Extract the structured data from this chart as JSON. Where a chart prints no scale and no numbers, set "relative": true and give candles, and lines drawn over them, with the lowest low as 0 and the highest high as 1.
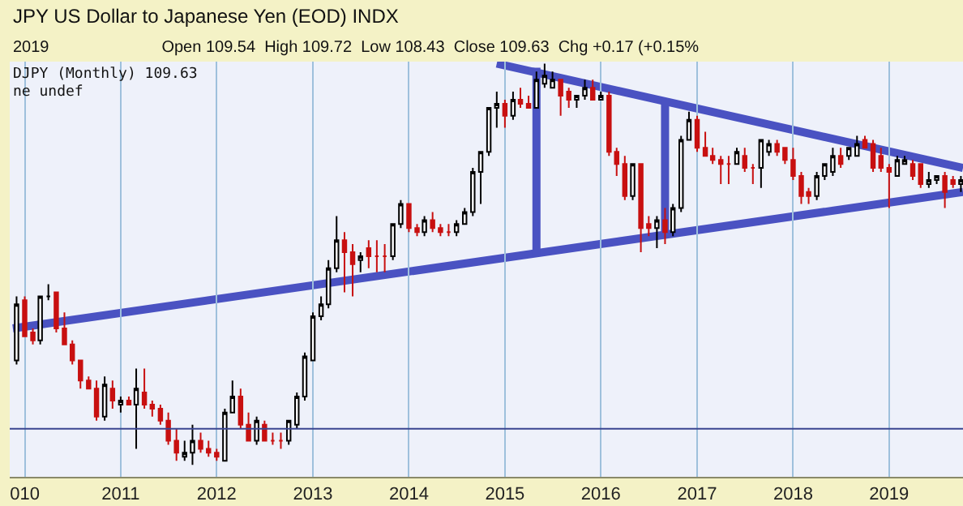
{
  "chart_data": {
    "type": "candlestick",
    "title": "JPY US Dollar to Japanese Yen (EOD) INDX",
    "subtitle": "2019                         Open 109.54  High 109.72  Low 108.43  Close 109.63  Chg +0.17 (+0.15%",
    "annotations": [
      "DJPY (Monthly) 109.63",
      "ne undef"
    ],
    "relative": true,
    "grid": "x",
    "xlim": [
      "2009-11-05",
      "2019-10-09"
    ],
    "xticks": [
      {
        "value": "2010-01",
        "label": "010"
      },
      {
        "value": "2011-01",
        "label": "2011"
      },
      {
        "value": "2012-01",
        "label": "2012"
      },
      {
        "value": "2013-01",
        "label": "2013"
      },
      {
        "value": "2014-01",
        "label": "2014"
      },
      {
        "value": "2015-01",
        "label": "2015"
      },
      {
        "value": "2016-01",
        "label": "2016"
      },
      {
        "value": "2017-01",
        "label": "2017"
      },
      {
        "value": "2018-01",
        "label": "2018"
      },
      {
        "value": "2019-01",
        "label": "2019"
      }
    ],
    "x": [
      "2009-12",
      "2010-01",
      "2010-02",
      "2010-03",
      "2010-04",
      "2010-05",
      "2010-06",
      "2010-07",
      "2010-08",
      "2010-09",
      "2010-10",
      "2010-11",
      "2010-12",
      "2011-01",
      "2011-02",
      "2011-03",
      "2011-04",
      "2011-05",
      "2011-06",
      "2011-07",
      "2011-08",
      "2011-09",
      "2011-10",
      "2011-11",
      "2011-12",
      "2012-01",
      "2012-02",
      "2012-03",
      "2012-04",
      "2012-05",
      "2012-06",
      "2012-07",
      "2012-08",
      "2012-09",
      "2012-10",
      "2012-11",
      "2012-12",
      "2013-01",
      "2013-02",
      "2013-03",
      "2013-04",
      "2013-05",
      "2013-06",
      "2013-07",
      "2013-08",
      "2013-09",
      "2013-10",
      "2013-11",
      "2013-12",
      "2014-01",
      "2014-02",
      "2014-03",
      "2014-04",
      "2014-05",
      "2014-06",
      "2014-07",
      "2014-08",
      "2014-09",
      "2014-10",
      "2014-11",
      "2014-12",
      "2015-01",
      "2015-02",
      "2015-03",
      "2015-04",
      "2015-05",
      "2015-06",
      "2015-07",
      "2015-08",
      "2015-09",
      "2015-10",
      "2015-11",
      "2015-12",
      "2016-01",
      "2016-02",
      "2016-03",
      "2016-04",
      "2016-05",
      "2016-06",
      "2016-07",
      "2016-08",
      "2016-09",
      "2016-10",
      "2016-11",
      "2016-12",
      "2017-01",
      "2017-02",
      "2017-03",
      "2017-04",
      "2017-05",
      "2017-06",
      "2017-07",
      "2017-08",
      "2017-09",
      "2017-10",
      "2017-11",
      "2017-12",
      "2018-01",
      "2018-02",
      "2018-03",
      "2018-04",
      "2018-05",
      "2018-06",
      "2018-07",
      "2018-08",
      "2018-09",
      "2018-10",
      "2018-11",
      "2018-12",
      "2019-01",
      "2019-02",
      "2019-03",
      "2019-04",
      "2019-05",
      "2019-06",
      "2019-07",
      "2019-08",
      "2019-09",
      "2019-10"
    ],
    "ohlc": [
      [
        0.26,
        0.42,
        0.25,
        0.4
      ],
      [
        0.41,
        0.42,
        0.32,
        0.32
      ],
      [
        0.33,
        0.34,
        0.3,
        0.31
      ],
      [
        0.31,
        0.42,
        0.3,
        0.42
      ],
      [
        0.42,
        0.45,
        0.41,
        0.42
      ],
      [
        0.43,
        0.43,
        0.33,
        0.34
      ],
      [
        0.34,
        0.38,
        0.3,
        0.3
      ],
      [
        0.3,
        0.31,
        0.25,
        0.26
      ],
      [
        0.26,
        0.26,
        0.19,
        0.21
      ],
      [
        0.21,
        0.22,
        0.19,
        0.19
      ],
      [
        0.19,
        0.21,
        0.11,
        0.12
      ],
      [
        0.12,
        0.22,
        0.11,
        0.2
      ],
      [
        0.19,
        0.21,
        0.14,
        0.16
      ],
      [
        0.15,
        0.17,
        0.13,
        0.16
      ],
      [
        0.16,
        0.17,
        0.15,
        0.15
      ],
      [
        0.15,
        0.24,
        0.04,
        0.19
      ],
      [
        0.18,
        0.24,
        0.14,
        0.15
      ],
      [
        0.15,
        0.16,
        0.12,
        0.14
      ],
      [
        0.14,
        0.15,
        0.1,
        0.11
      ],
      [
        0.11,
        0.13,
        0.05,
        0.06
      ],
      [
        0.06,
        0.09,
        0.01,
        0.03
      ],
      [
        0.02,
        0.06,
        0.01,
        0.03
      ],
      [
        0.03,
        0.1,
        0,
        0.06
      ],
      [
        0.06,
        0.08,
        0.03,
        0.04
      ],
      [
        0.04,
        0.06,
        0.02,
        0.03
      ],
      [
        0.03,
        0.04,
        0.01,
        0.02
      ],
      [
        0.01,
        0.14,
        0.01,
        0.13
      ],
      [
        0.13,
        0.21,
        0.13,
        0.17
      ],
      [
        0.17,
        0.19,
        0.09,
        0.1
      ],
      [
        0.1,
        0.13,
        0.06,
        0.06
      ],
      [
        0.06,
        0.12,
        0.05,
        0.11
      ],
      [
        0.1,
        0.11,
        0.06,
        0.06
      ],
      [
        0.06,
        0.08,
        0.05,
        0.06
      ],
      [
        0.06,
        0.08,
        0.04,
        0.06
      ],
      [
        0.06,
        0.11,
        0.05,
        0.11
      ],
      [
        0.1,
        0.18,
        0.09,
        0.17
      ],
      [
        0.17,
        0.28,
        0.16,
        0.27
      ],
      [
        0.26,
        0.38,
        0.26,
        0.37
      ],
      [
        0.37,
        0.42,
        0.36,
        0.4
      ],
      [
        0.4,
        0.51,
        0.39,
        0.49
      ],
      [
        0.49,
        0.62,
        0.48,
        0.56
      ],
      [
        0.56,
        0.58,
        0.43,
        0.53
      ],
      [
        0.53,
        0.55,
        0.42,
        0.5
      ],
      [
        0.51,
        0.53,
        0.48,
        0.52
      ],
      [
        0.54,
        0.56,
        0.49,
        0.52
      ],
      [
        0.52,
        0.56,
        0.48,
        0.52
      ],
      [
        0.52,
        0.55,
        0.48,
        0.52
      ],
      [
        0.52,
        0.6,
        0.51,
        0.6
      ],
      [
        0.6,
        0.66,
        0.59,
        0.65
      ],
      [
        0.65,
        0.65,
        0.58,
        0.59
      ],
      [
        0.59,
        0.6,
        0.57,
        0.58
      ],
      [
        0.58,
        0.62,
        0.57,
        0.61
      ],
      [
        0.61,
        0.63,
        0.58,
        0.59
      ],
      [
        0.59,
        0.6,
        0.57,
        0.58
      ],
      [
        0.58,
        0.6,
        0.57,
        0.58
      ],
      [
        0.58,
        0.61,
        0.57,
        0.6
      ],
      [
        0.6,
        0.64,
        0.6,
        0.63
      ],
      [
        0.63,
        0.74,
        0.62,
        0.73
      ],
      [
        0.73,
        0.78,
        0.65,
        0.78
      ],
      [
        0.78,
        0.89,
        0.77,
        0.89
      ],
      [
        0.89,
        0.93,
        0.84,
        0.9
      ],
      [
        0.9,
        0.91,
        0.84,
        0.87
      ],
      [
        0.87,
        0.93,
        0.86,
        0.91
      ],
      [
        0.91,
        0.94,
        0.89,
        0.9
      ],
      [
        0.9,
        0.92,
        0.89,
        0.89
      ],
      [
        0.89,
        0.98,
        0.89,
        0.96
      ],
      [
        0.95,
        1,
        0.94,
        0.97
      ],
      [
        0.94,
        0.98,
        0.94,
        0.96
      ],
      [
        0.96,
        0.96,
        0.87,
        0.92
      ],
      [
        0.93,
        0.94,
        0.89,
        0.91
      ],
      [
        0.91,
        0.92,
        0.89,
        0.92
      ],
      [
        0.92,
        0.96,
        0.91,
        0.94
      ],
      [
        0.94,
        0.96,
        0.91,
        0.91
      ],
      [
        0.91,
        0.93,
        0.91,
        0.92
      ],
      [
        0.92,
        0.93,
        0.77,
        0.78
      ],
      [
        0.78,
        0.79,
        0.72,
        0.75
      ],
      [
        0.75,
        0.77,
        0.66,
        0.67
      ],
      [
        0.67,
        0.75,
        0.66,
        0.75
      ],
      [
        0.75,
        0.75,
        0.53,
        0.59
      ],
      [
        0.6,
        0.62,
        0.57,
        0.59
      ],
      [
        0.59,
        0.62,
        0.54,
        0.61
      ],
      [
        0.61,
        0.64,
        0.55,
        0.58
      ],
      [
        0.58,
        0.65,
        0.57,
        0.64
      ],
      [
        0.64,
        0.82,
        0.63,
        0.81
      ],
      [
        0.81,
        0.88,
        0.81,
        0.86
      ],
      [
        0.86,
        0.87,
        0.78,
        0.79
      ],
      [
        0.79,
        0.83,
        0.77,
        0.77
      ],
      [
        0.77,
        0.79,
        0.75,
        0.76
      ],
      [
        0.76,
        0.77,
        0.7,
        0.75
      ],
      [
        0.75,
        0.77,
        0.7,
        0.75
      ],
      [
        0.75,
        0.79,
        0.75,
        0.78
      ],
      [
        0.77,
        0.79,
        0.73,
        0.74
      ],
      [
        0.74,
        0.75,
        0.7,
        0.74
      ],
      [
        0.74,
        0.81,
        0.69,
        0.81
      ],
      [
        0.78,
        0.81,
        0.77,
        0.8
      ],
      [
        0.8,
        0.81,
        0.77,
        0.78
      ],
      [
        0.79,
        0.79,
        0.75,
        0.76
      ],
      [
        0.76,
        0.79,
        0.71,
        0.72
      ],
      [
        0.72,
        0.73,
        0.65,
        0.67
      ],
      [
        0.68,
        0.69,
        0.65,
        0.67
      ],
      [
        0.67,
        0.73,
        0.66,
        0.72
      ],
      [
        0.72,
        0.75,
        0.71,
        0.75
      ],
      [
        0.73,
        0.79,
        0.72,
        0.77
      ],
      [
        0.77,
        0.79,
        0.74,
        0.75
      ],
      [
        0.77,
        0.79,
        0.76,
        0.79
      ],
      [
        0.77,
        0.82,
        0.77,
        0.8
      ],
      [
        0.81,
        0.82,
        0.79,
        0.79
      ],
      [
        0.8,
        0.81,
        0.73,
        0.74
      ],
      [
        0.77,
        0.79,
        0.73,
        0.74
      ],
      [
        0.74,
        0.75,
        0.64,
        0.73
      ],
      [
        0.72,
        0.77,
        0.72,
        0.76
      ],
      [
        0.75,
        0.77,
        0.75,
        0.76
      ],
      [
        0.75,
        0.76,
        0.71,
        0.72
      ],
      [
        0.75,
        0.75,
        0.69,
        0.7
      ],
      [
        0.7,
        0.73,
        0.69,
        0.71
      ],
      [
        0.71,
        0.72,
        0.7,
        0.72
      ],
      [
        0.72,
        0.73,
        0.64,
        0.68
      ],
      [
        0.71,
        0.72,
        0.69,
        0.7
      ],
      [
        0.7,
        0.72,
        0.68,
        0.71
      ]
    ],
    "series": [
      {
        "type": "line",
        "color": "#4a52c2",
        "x": [
          "2009-11-17",
          "2019-10-09"
        ],
        "values": [
          0.34,
          0.68
        ]
      },
      {
        "type": "line",
        "color": "#4a52c2",
        "x": [
          "2014-12",
          "2019-10-09"
        ],
        "values": [
          1.0,
          0.74
        ]
      },
      {
        "type": "line",
        "color": "#4a52c2",
        "x": [
          "2015-05",
          "2015-05"
        ],
        "values": [
          0.99,
          0.52
        ]
      },
      {
        "type": "line",
        "color": "#4a52c2",
        "x": [
          "2016-09",
          "2016-09"
        ],
        "values": [
          0.91,
          0.57
        ]
      }
    ],
    "ref_lines": [
      {
        "axis": "y",
        "value": 0.09,
        "color": "#3a4590"
      }
    ]
  }
}
